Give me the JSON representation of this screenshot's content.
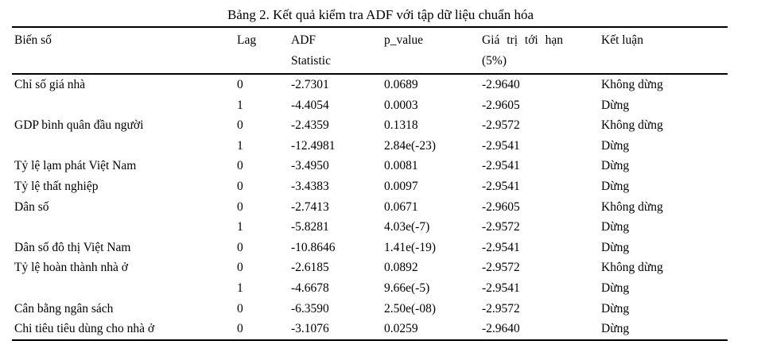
{
  "colors": {
    "text": "#000000",
    "background": "#ffffff",
    "rule": "#000000"
  },
  "caption": "Bảng 2. Kết quả kiểm tra ADF với tập dữ liệu chuẩn hóa",
  "table": {
    "columns": [
      {
        "label": "Biến số",
        "label2": ""
      },
      {
        "label": "Lag",
        "label2": ""
      },
      {
        "label": "ADF",
        "label2": "Statistic"
      },
      {
        "label": "p_value",
        "label2": ""
      },
      {
        "label": "Giá trị tới hạn",
        "label2": "(5%)"
      },
      {
        "label": "Kết luận",
        "label2": ""
      }
    ],
    "rows": [
      [
        "Chỉ số giá nhà",
        "0",
        "-2.7301",
        "0.0689",
        "-2.9640",
        "Không dừng"
      ],
      [
        "",
        "1",
        "-4.4054",
        "0.0003",
        "-2.9605",
        "Dừng"
      ],
      [
        "GDP bình quân đầu người",
        "0",
        "-2.4359",
        "0.1318",
        "-2.9572",
        "Không dừng"
      ],
      [
        "",
        "1",
        "-12.4981",
        "2.84e(-23)",
        "-2.9541",
        "Dừng"
      ],
      [
        "Tỷ lệ lạm phát Việt Nam",
        "0",
        "-3.4950",
        "0.0081",
        "-2.9541",
        "Dừng"
      ],
      [
        "Tỷ lệ thất nghiệp",
        "0",
        "-3.4383",
        "0.0097",
        "-2.9541",
        "Dừng"
      ],
      [
        "Dân số",
        "0",
        "-2.7413",
        "0.0671",
        "-2.9605",
        "Không dừng"
      ],
      [
        "",
        "1",
        "-5.8281",
        "4.03e(-7)",
        "-2.9572",
        "Dừng"
      ],
      [
        "Dân số đô thị Việt Nam",
        "0",
        "-10.8646",
        "1.41e(-19)",
        "-2.9541",
        "Dừng"
      ],
      [
        "Tỷ lệ hoàn thành nhà ở",
        "0",
        "-2.6185",
        "0.0892",
        "-2.9572",
        "Không dừng"
      ],
      [
        "",
        "1",
        "-4.6678",
        "9.66e(-5)",
        "-2.9541",
        "Dừng"
      ],
      [
        "Cân bằng ngân sách",
        "0",
        "-6.3590",
        "2.50e(-08)",
        "-2.9572",
        "Dừng"
      ],
      [
        "Chi tiêu tiêu dùng cho nhà ở",
        "0",
        "-3.1076",
        "0.0259",
        "-2.9640",
        "Dừng"
      ]
    ]
  }
}
